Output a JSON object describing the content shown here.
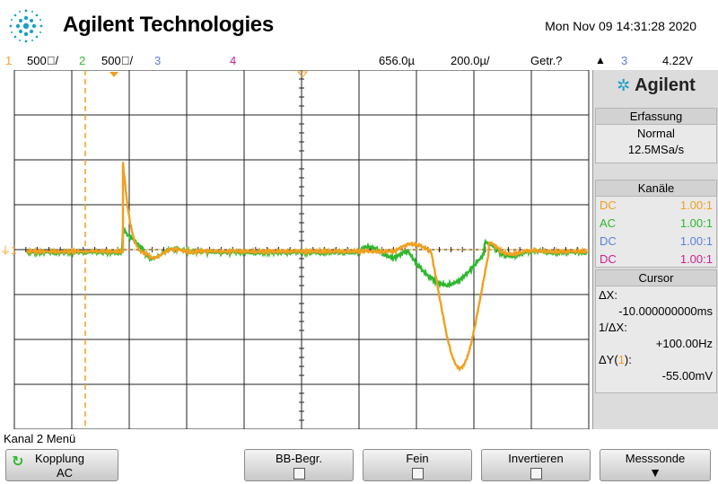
{
  "header": {
    "brand": "Agilent Technologies",
    "datetime": "Mon Nov 09 14:31:28 2020"
  },
  "status": {
    "ch1_num": "1",
    "ch1_scale": "500⃥/",
    "ch2_num": "2",
    "ch2_scale": "500⃥/",
    "ch3_num": "3",
    "ch4_num": "4",
    "time_offset": "656.0µ",
    "time_scale": "200.0µ/",
    "trigger_mode": "Getr.?",
    "trigger_source": "3",
    "trigger_level": "4.22V"
  },
  "panel": {
    "logo": "Agilent",
    "acq_title": "Erfassung",
    "acq_mode": "Normal",
    "acq_rate": "12.5MSa/s",
    "channels_title": "Kanäle",
    "channels": [
      {
        "coupling": "DC",
        "ratio": "1.00:1",
        "color": "#f0a020"
      },
      {
        "coupling": "AC",
        "ratio": "1.00:1",
        "color": "#2fb82f"
      },
      {
        "coupling": "DC",
        "ratio": "1.00:1",
        "color": "#5b7fe0"
      },
      {
        "coupling": "DC",
        "ratio": "1.00:1",
        "color": "#d0208c"
      }
    ],
    "cursor_title": "Cursor",
    "dx_label": "ΔX:",
    "dx_value": "-10.000000000ms",
    "inv_dx_label": "1/ΔX:",
    "inv_dx_value": "+100.00Hz",
    "dy_label_prefix": "ΔY(",
    "dy_label_ch": "1",
    "dy_label_suffix": "):",
    "dy_value": "-55.00mV"
  },
  "menu": {
    "title": "Kanal 2 Menü",
    "keys": [
      {
        "label": "Kopplung",
        "value": "AC"
      },
      {
        "label": "BB-Begr."
      },
      {
        "label": "Fein"
      },
      {
        "label": "Invertieren"
      },
      {
        "label": "Messsonde"
      }
    ]
  },
  "colors": {
    "ch1": "#f0a020",
    "ch2": "#2fb82f",
    "ch3": "#5b7fe0",
    "ch4": "#d0208c"
  }
}
